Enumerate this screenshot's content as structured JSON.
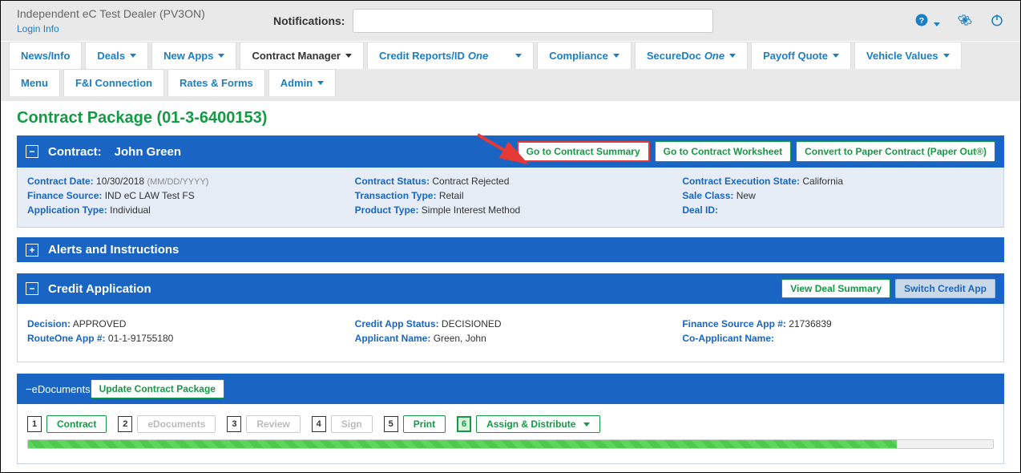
{
  "header": {
    "dealer_name": "Independent eC Test Dealer (PV3ON)",
    "login_info": "Login Info",
    "notifications_label": "Notifications:"
  },
  "nav": {
    "row1": [
      {
        "label": "News/Info",
        "caret": false,
        "active": false
      },
      {
        "label": "Deals",
        "caret": true,
        "active": false
      },
      {
        "label": "New Apps",
        "caret": true,
        "active": false
      },
      {
        "label": "Contract Manager",
        "caret": true,
        "active": true
      },
      {
        "label": "Credit Reports/ID",
        "italic": "One",
        "caret": true,
        "active": false,
        "caret_gap": true
      },
      {
        "label": "Compliance",
        "caret": true,
        "active": false
      },
      {
        "label": "SecureDoc",
        "italic": "One",
        "caret": true,
        "active": false
      },
      {
        "label": "Payoff Quote",
        "caret": true,
        "active": false
      },
      {
        "label": "Vehicle Values",
        "caret": true,
        "active": false
      }
    ],
    "row2": [
      {
        "label": "Menu",
        "caret": false
      },
      {
        "label": "F&I Connection",
        "caret": false
      },
      {
        "label": "Rates & Forms",
        "caret": false
      },
      {
        "label": "Admin",
        "caret": true
      }
    ]
  },
  "page_title": "Contract Package (01-3-6400153)",
  "contract": {
    "bar_label": "Contract:",
    "customer_name": "John Green",
    "toggle": "−",
    "buttons": {
      "summary": "Go to Contract Summary",
      "worksheet": "Go to Contract Worksheet",
      "paper": "Convert to Paper Contract (Paper Out®)"
    },
    "row1": {
      "date_k": "Contract Date:",
      "date_v": "10/30/2018",
      "date_hint": "(MM/DD/YYYY)",
      "status_k": "Contract Status:",
      "status_v": "Contract Rejected",
      "exec_k": "Contract Execution State:",
      "exec_v": "California"
    },
    "row2": {
      "fs_k": "Finance Source:",
      "fs_v": "IND eC LAW Test FS",
      "tt_k": "Transaction Type:",
      "tt_v": "Retail",
      "sc_k": "Sale Class:",
      "sc_v": "New"
    },
    "row3": {
      "at_k": "Application Type:",
      "at_v": "Individual",
      "pt_k": "Product Type:",
      "pt_v": "Simple Interest Method",
      "di_k": "Deal ID:",
      "di_v": ""
    }
  },
  "alerts": {
    "title": "Alerts and Instructions",
    "toggle": "+"
  },
  "credit": {
    "title": "Credit Application",
    "toggle": "−",
    "buttons": {
      "view": "View Deal Summary",
      "switch": "Switch Credit App"
    },
    "row1": {
      "dec_k": "Decision:",
      "dec_v": "APPROVED",
      "cas_k": "Credit App Status:",
      "cas_v": "DECISIONED",
      "fsa_k": "Finance Source App #:",
      "fsa_v": "21736839"
    },
    "row2": {
      "app_k": "RouteOne App #:",
      "app_v": "01-1-91755180",
      "name_k": "Applicant Name:",
      "name_v": "Green, John",
      "co_k": "Co-Applicant Name:",
      "co_v": ""
    }
  },
  "edoc": {
    "title": "eDocuments",
    "toggle": "−",
    "update_btn": "Update Contract Package",
    "steps": [
      {
        "n": "1",
        "label": "Contract",
        "disabled": false
      },
      {
        "n": "2",
        "label": "eDocuments",
        "disabled": true
      },
      {
        "n": "3",
        "label": "Review",
        "disabled": true
      },
      {
        "n": "4",
        "label": "Sign",
        "disabled": true
      },
      {
        "n": "5",
        "label": "Print",
        "disabled": false
      },
      {
        "n": "6",
        "label": "Assign & Distribute",
        "disabled": false,
        "active": true,
        "caret": true
      }
    ],
    "progress_pct": 90
  }
}
